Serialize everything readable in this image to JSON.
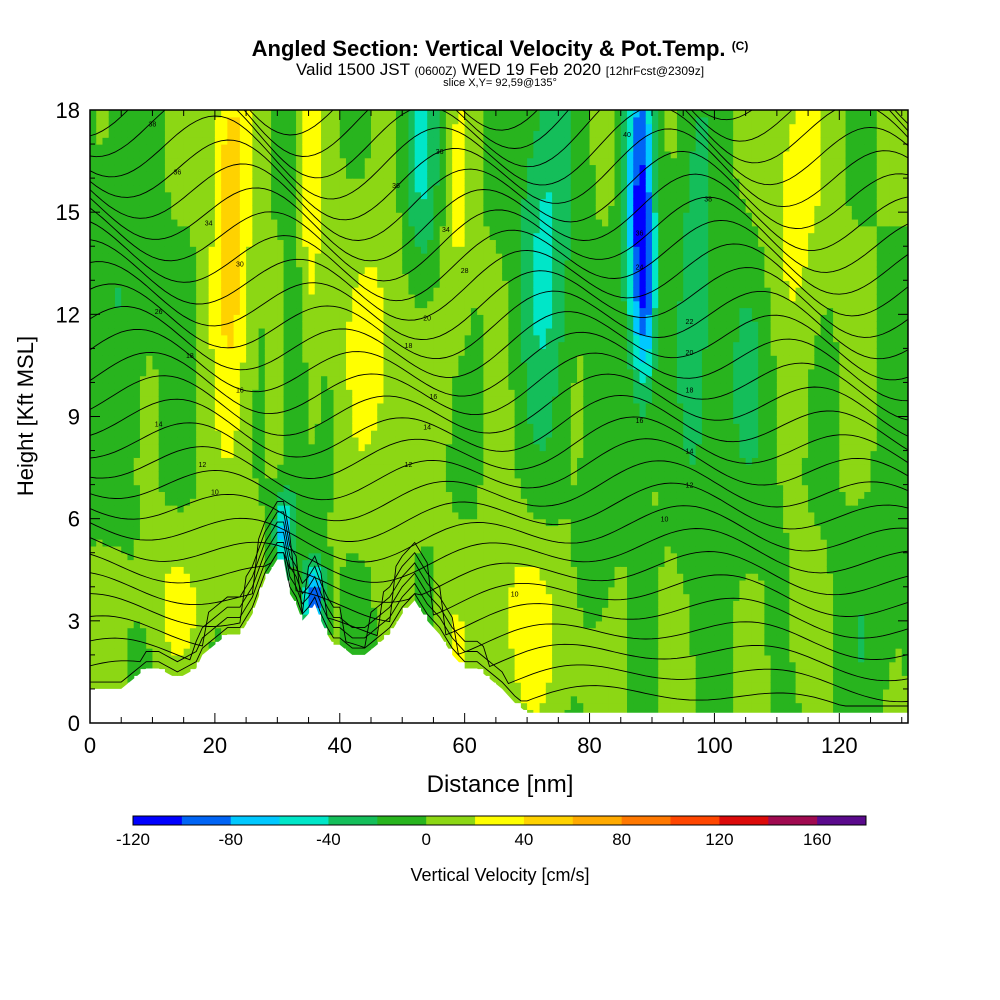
{
  "chart_data": {
    "type": "heatmap",
    "title": "Angled Section: Vertical Velocity & Pot.Temp.",
    "title_units": "(C)",
    "subtitle_main": "Valid 1500 JST",
    "subtitle_utc": "(0600Z)",
    "subtitle_date": "WED 19 Feb 2020",
    "subtitle_fcst": "[12hrFcst@2309z]",
    "slice_label": "slice X,Y= 92,59@135°",
    "xlabel": "Distance [nm]",
    "ylabel": "Height [Kft MSL]",
    "xlim": [
      0,
      131
    ],
    "ylim": [
      0,
      18
    ],
    "x_ticks": [
      "0",
      "20",
      "40",
      "60",
      "80",
      "100",
      "120"
    ],
    "y_ticks": [
      "0",
      "3",
      "6",
      "9",
      "12",
      "15",
      "18"
    ],
    "colorbar": {
      "label": "Vertical Velocity [cm/s]",
      "ticks": [
        "-120",
        "-80",
        "-40",
        "0",
        "40",
        "80",
        "120",
        "160"
      ],
      "range": [
        -120,
        180
      ],
      "step": 20,
      "colors": [
        "#0000ff",
        "#0064f5",
        "#00c8ff",
        "#00e6c8",
        "#14be5a",
        "#28b41e",
        "#8cd714",
        "#ffff00",
        "#ffd200",
        "#ffaa00",
        "#ff7800",
        "#ff4600",
        "#dc0a0a",
        "#a00a50",
        "#5a0a8c"
      ]
    },
    "series": [
      {
        "name": "terrain",
        "x": [
          0,
          5,
          7,
          9,
          11,
          14,
          17,
          18,
          20,
          22,
          24,
          26,
          28,
          30,
          31,
          32,
          33,
          34,
          35,
          36,
          37,
          38,
          39,
          40,
          42,
          44,
          46,
          48,
          50,
          52,
          54,
          56,
          58,
          60,
          62,
          64,
          66,
          68,
          70,
          72,
          131
        ],
        "y": [
          1.0,
          1.0,
          1.3,
          1.6,
          1.6,
          1.3,
          1.6,
          2.0,
          2.3,
          2.6,
          2.6,
          3.2,
          4.2,
          4.8,
          4.8,
          3.8,
          3.5,
          3.0,
          3.2,
          3.5,
          3.0,
          2.6,
          2.3,
          2.3,
          2.0,
          2.0,
          2.3,
          2.6,
          3.2,
          3.6,
          3.0,
          2.6,
          2.0,
          1.6,
          1.6,
          1.3,
          1.0,
          0.6,
          0.3,
          0.3,
          0.3
        ]
      }
    ],
    "field": {
      "background_w": 0,
      "features": [
        {
          "x": 23,
          "z": 13,
          "sx": 2.2,
          "sz": 4.5,
          "w": 36
        },
        {
          "x": 22,
          "z": 16,
          "sx": 1.8,
          "sz": 3,
          "w": 28
        },
        {
          "x": 35,
          "z": 15,
          "sx": 1.8,
          "sz": 4,
          "w": 32
        },
        {
          "x": 14,
          "z": 3.5,
          "sx": 4,
          "sz": 1.3,
          "w": 24
        },
        {
          "x": 46,
          "z": 11,
          "sx": 4,
          "sz": 2.8,
          "w": 28
        },
        {
          "x": 59,
          "z": 15,
          "sx": 1.6,
          "sz": 3,
          "w": 24
        },
        {
          "x": 69,
          "z": 3,
          "sx": 3.5,
          "sz": 2,
          "w": 26
        },
        {
          "x": 77,
          "z": 2.5,
          "sx": 5,
          "sz": 1.8,
          "w": 14
        },
        {
          "x": 113,
          "z": 16,
          "sx": 3.5,
          "sz": 3.5,
          "w": 30
        },
        {
          "x": 114,
          "z": 3,
          "sx": 2,
          "sz": 1.5,
          "w": 14
        },
        {
          "x": 58,
          "z": 2.5,
          "sx": 2,
          "sz": 1.5,
          "w": 18
        },
        {
          "x": 88,
          "z": 15.5,
          "sx": 1.6,
          "sz": 3.5,
          "w": -95
        },
        {
          "x": 89,
          "z": 12.5,
          "sx": 1.2,
          "sz": 2,
          "w": -55
        },
        {
          "x": 36,
          "z": 3.6,
          "sx": 1.2,
          "sz": 0.8,
          "w": -100
        },
        {
          "x": 31,
          "z": 5.6,
          "sx": 1,
          "sz": 0.8,
          "w": -70
        },
        {
          "x": 33,
          "z": 10.5,
          "sx": 1.2,
          "sz": 3.5,
          "w": -35
        },
        {
          "x": 53,
          "z": 16.5,
          "sx": 2,
          "sz": 2.5,
          "w": -45
        },
        {
          "x": 73,
          "z": 14,
          "sx": 3,
          "sz": 4,
          "w": -45
        },
        {
          "x": 97,
          "z": 13,
          "sx": 2,
          "sz": 5,
          "w": -30
        },
        {
          "x": 105,
          "z": 10,
          "sx": 4,
          "sz": 3,
          "w": -20
        },
        {
          "x": 6,
          "z": 14,
          "sx": 3,
          "sz": 4,
          "w": -20
        },
        {
          "x": 81,
          "z": 4.5,
          "sx": 2,
          "sz": 2,
          "w": -20
        },
        {
          "x": 125,
          "z": 3,
          "sx": 4,
          "sz": 2,
          "w": -15
        }
      ]
    },
    "theta_labels": [
      {
        "x": 10,
        "z": 17.6,
        "t": "38"
      },
      {
        "x": 14,
        "z": 16.2,
        "t": "36"
      },
      {
        "x": 19,
        "z": 14.7,
        "t": "34"
      },
      {
        "x": 24,
        "z": 13.5,
        "t": "30"
      },
      {
        "x": 11,
        "z": 12.1,
        "t": "26"
      },
      {
        "x": 16,
        "z": 10.8,
        "t": "18"
      },
      {
        "x": 24,
        "z": 9.8,
        "t": "16"
      },
      {
        "x": 11,
        "z": 8.8,
        "t": "14"
      },
      {
        "x": 18,
        "z": 7.6,
        "t": "12"
      },
      {
        "x": 20,
        "z": 6.8,
        "t": "10"
      },
      {
        "x": 56,
        "z": 16.8,
        "t": "36"
      },
      {
        "x": 49,
        "z": 15.8,
        "t": "36"
      },
      {
        "x": 57,
        "z": 14.5,
        "t": "34"
      },
      {
        "x": 60,
        "z": 13.3,
        "t": "28"
      },
      {
        "x": 54,
        "z": 11.9,
        "t": "20"
      },
      {
        "x": 51,
        "z": 11.1,
        "t": "18"
      },
      {
        "x": 55,
        "z": 9.6,
        "t": "16"
      },
      {
        "x": 54,
        "z": 8.7,
        "t": "14"
      },
      {
        "x": 51,
        "z": 7.6,
        "t": "12"
      },
      {
        "x": 68,
        "z": 3.8,
        "t": "10"
      },
      {
        "x": 86,
        "z": 17.3,
        "t": "40"
      },
      {
        "x": 99,
        "z": 15.4,
        "t": "38"
      },
      {
        "x": 88,
        "z": 14.4,
        "t": "36"
      },
      {
        "x": 88,
        "z": 13.4,
        "t": "24"
      },
      {
        "x": 96,
        "z": 11.8,
        "t": "22"
      },
      {
        "x": 96,
        "z": 10.9,
        "t": "20"
      },
      {
        "x": 96,
        "z": 9.8,
        "t": "18"
      },
      {
        "x": 88,
        "z": 8.9,
        "t": "16"
      },
      {
        "x": 96,
        "z": 8.0,
        "t": "14"
      },
      {
        "x": 96,
        "z": 7.0,
        "t": "12"
      },
      {
        "x": 92,
        "z": 6.0,
        "t": "10"
      }
    ]
  }
}
